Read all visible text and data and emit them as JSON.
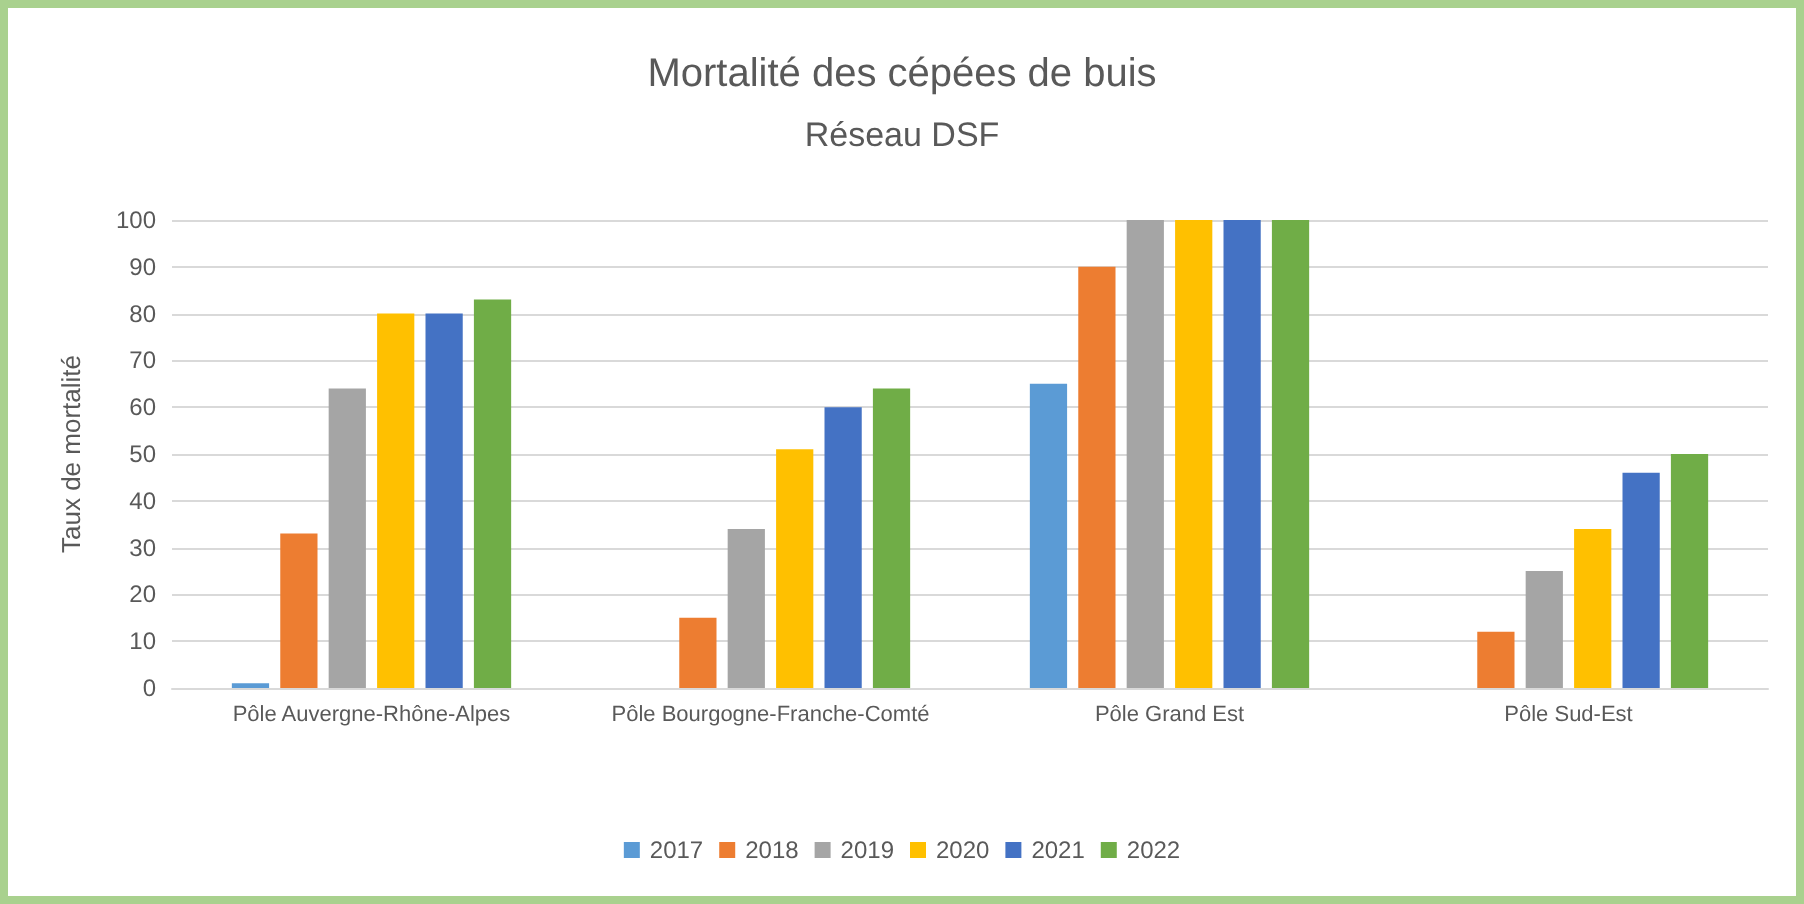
{
  "chart_data": {
    "type": "bar",
    "title": "Mortalité des cépées de buis",
    "subtitle": "Réseau DSF",
    "ylabel": "Taux de mortalité",
    "categories": [
      "Pôle Auvergne-Rhône-Alpes",
      "Pôle Bourgogne-Franche-Comté",
      "Pôle Grand Est",
      "Pôle Sud-Est"
    ],
    "series": [
      {
        "name": "2017",
        "color": "#5b9bd5",
        "values": [
          1,
          null,
          65,
          null
        ]
      },
      {
        "name": "2018",
        "color": "#ed7d31",
        "values": [
          33,
          15,
          90,
          12
        ]
      },
      {
        "name": "2019",
        "color": "#a5a5a5",
        "values": [
          64,
          34,
          100,
          25
        ]
      },
      {
        "name": "2020",
        "color": "#ffc000",
        "values": [
          80,
          51,
          100,
          34
        ]
      },
      {
        "name": "2021",
        "color": "#4472c4",
        "values": [
          80,
          60,
          100,
          46
        ]
      },
      {
        "name": "2022",
        "color": "#70ad47",
        "values": [
          83,
          64,
          100,
          50
        ]
      }
    ],
    "ylim": [
      0,
      100
    ],
    "yticks": [
      0,
      10,
      20,
      30,
      40,
      50,
      60,
      70,
      80,
      90,
      100
    ],
    "grid": "y",
    "legend": "bottom"
  }
}
